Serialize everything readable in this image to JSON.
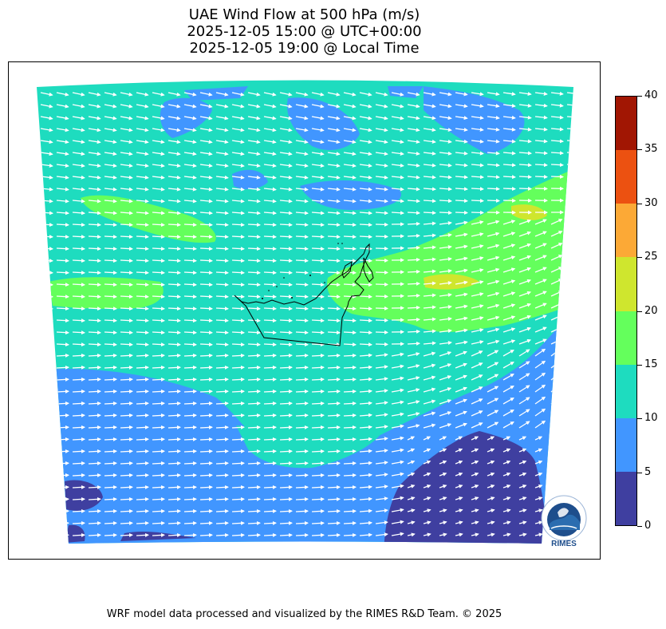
{
  "title": {
    "line1": "UAE Wind Flow at 500 hPa (m/s)",
    "line2": "2025-12-05 15:00 @ UTC+00:00",
    "line3": "2025-12-05 19:00 @ Local Time"
  },
  "colorbar": {
    "levels": [
      0,
      5,
      10,
      15,
      20,
      25,
      30,
      35,
      40
    ],
    "tick_labels": [
      "0",
      "5",
      "10",
      "15",
      "20",
      "25",
      "30",
      "35",
      "40"
    ],
    "colors": [
      "#3f3fa0",
      "#4196ff",
      "#1edcbf",
      "#64ff5c",
      "#cfe62e",
      "#fca936",
      "#ec5111",
      "#a11603"
    ]
  },
  "map": {
    "region": "UAE",
    "wind_direction": "west-to-east",
    "arrow_color": "#ffffff",
    "border_color": "#000000"
  },
  "logo": {
    "name": "RIMES",
    "icon": "rimes-globe-logo"
  },
  "footer": {
    "credit": "WRF model data processed and visualized by the RIMES R&D Team. © 2025"
  }
}
